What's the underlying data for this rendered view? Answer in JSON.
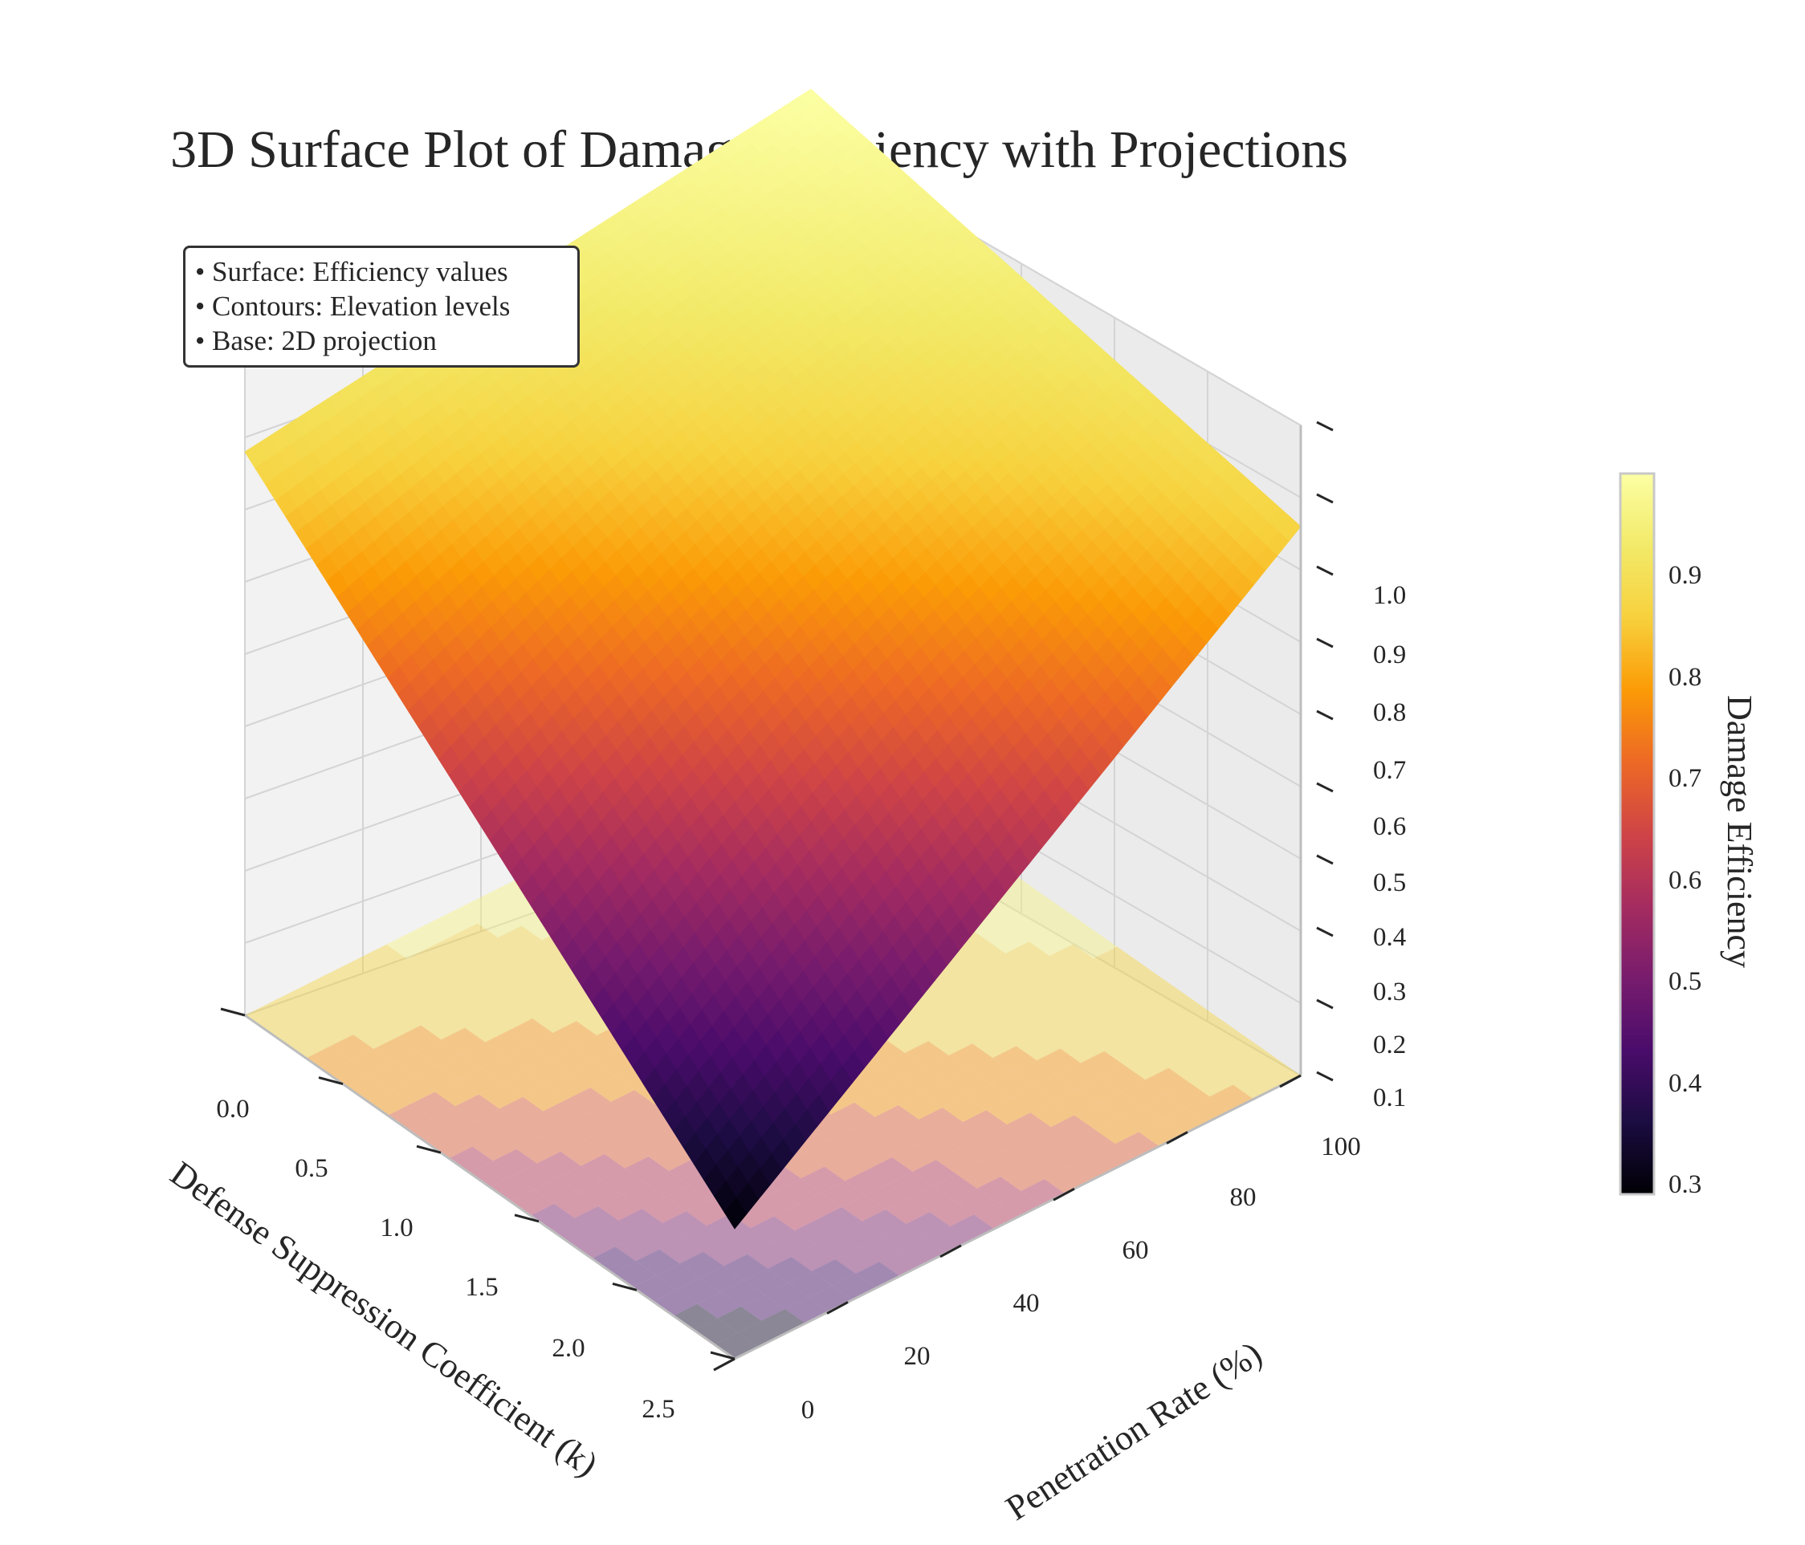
{
  "chart_data": {
    "type": "surface3d",
    "title": "3D Surface Plot of Damage Efficiency with Projections",
    "x_axis": {
      "label": "Penetration Rate (%)",
      "range": [
        0,
        100
      ],
      "ticks": [
        "0",
        "20",
        "40",
        "60",
        "80",
        "100"
      ]
    },
    "y_axis": {
      "label": "Defense Suppression Coefficient (k)",
      "range": [
        0,
        2.5
      ],
      "ticks": [
        "0.0",
        "0.5",
        "1.0",
        "1.5",
        "2.0",
        "2.5"
      ]
    },
    "z_axis": {
      "range": [
        0.1,
        1.0
      ],
      "ticks": [
        "0.1",
        "0.2",
        "0.3",
        "0.4",
        "0.5",
        "0.6",
        "0.7",
        "0.8",
        "0.9",
        "1.0"
      ]
    },
    "colorbar": {
      "label": "Damage Efficiency",
      "range": [
        0.28,
        0.99
      ],
      "ticks": [
        "0.3",
        "0.4",
        "0.5",
        "0.6",
        "0.7",
        "0.8",
        "0.9"
      ],
      "colormap": "inferno"
    },
    "surface_corners": [
      {
        "penetration": 0,
        "k": 0.0,
        "efficiency": 0.88
      },
      {
        "penetration": 100,
        "k": 0.0,
        "efficiency": 0.99
      },
      {
        "penetration": 100,
        "k": 2.5,
        "efficiency": 0.86
      },
      {
        "penetration": 0,
        "k": 2.5,
        "efficiency": 0.28
      }
    ],
    "projection": "filled contours on base plane",
    "annotation": [
      "• Surface: Efficiency values",
      "• Contours: Elevation levels",
      "• Base: 2D projection"
    ],
    "grid": true
  }
}
